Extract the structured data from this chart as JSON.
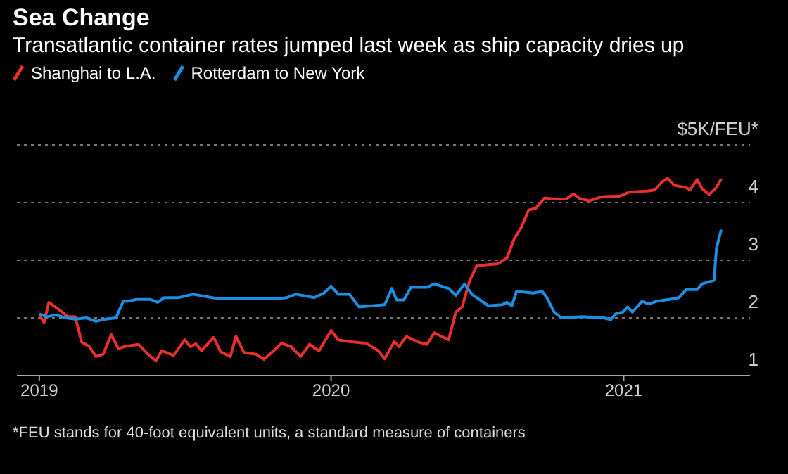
{
  "chart_data": {
    "type": "line",
    "title": "Sea Change",
    "subtitle": "Transatlantic container rates jumped last week as ship capacity dries up",
    "annotations": [
      "*FEU stands for 40-foot equivalent units, a standard measure of containers"
    ],
    "xlim": [
      "2018-12-04",
      "2021-06-08"
    ],
    "xticks": [
      "2019",
      "2020",
      "2021"
    ],
    "ylim": [
      1,
      5
    ],
    "yticks": [
      1,
      2,
      3,
      4,
      {
        "value": 5,
        "label": "$5K/FEU*"
      }
    ],
    "grid": "y",
    "legend": "top left",
    "series": [
      {
        "name": "Shanghai to L.A.",
        "color": "#e8302e",
        "x": [
          "2019-01-01",
          "2019-01-07",
          "2019-01-13",
          "2019-01-25",
          "2019-02-06",
          "2019-02-15",
          "2019-02-23",
          "2019-03-04",
          "2019-03-13",
          "2019-03-22",
          "2019-04-01",
          "2019-04-10",
          "2019-04-20",
          "2019-05-05",
          "2019-05-17",
          "2019-05-27",
          "2019-06-03",
          "2019-06-18",
          "2019-07-02",
          "2019-07-09",
          "2019-07-16",
          "2019-07-23",
          "2019-08-07",
          "2019-08-16",
          "2019-08-28",
          "2019-09-04",
          "2019-09-14",
          "2019-09-29",
          "2019-10-09",
          "2019-10-18",
          "2019-10-31",
          "2019-11-12",
          "2019-11-24",
          "2019-12-05",
          "2019-12-17",
          "2020-01-01",
          "2020-01-10",
          "2020-01-22",
          "2020-02-14",
          "2020-02-29",
          "2020-03-08",
          "2020-03-20",
          "2020-03-26",
          "2020-04-04",
          "2020-04-19",
          "2020-04-30",
          "2020-05-09",
          "2020-05-27",
          "2020-06-05",
          "2020-06-13",
          "2020-06-22",
          "2020-07-01",
          "2020-07-13",
          "2020-07-28",
          "2020-08-08",
          "2020-08-17",
          "2020-08-26",
          "2020-09-04",
          "2020-09-13",
          "2020-09-24",
          "2020-10-06",
          "2020-10-21",
          "2020-10-30",
          "2020-11-07",
          "2020-11-19",
          "2020-12-04",
          "2020-12-19",
          "2020-12-27",
          "2021-01-08",
          "2021-02-01",
          "2021-02-09",
          "2021-02-18",
          "2021-02-25",
          "2021-03-05",
          "2021-03-20",
          "2021-03-25",
          "2021-04-03",
          "2021-04-09",
          "2021-04-18",
          "2021-04-27",
          "2021-05-03"
        ],
        "values": [
          2.05,
          1.92,
          2.27,
          2.15,
          2.02,
          2.02,
          1.58,
          1.51,
          1.33,
          1.37,
          1.71,
          1.47,
          1.51,
          1.54,
          1.37,
          1.25,
          1.43,
          1.35,
          1.62,
          1.5,
          1.55,
          1.43,
          1.66,
          1.41,
          1.33,
          1.68,
          1.4,
          1.37,
          1.28,
          1.39,
          1.56,
          1.5,
          1.33,
          1.54,
          1.43,
          1.78,
          1.62,
          1.59,
          1.56,
          1.43,
          1.29,
          1.59,
          1.5,
          1.68,
          1.58,
          1.54,
          1.74,
          1.62,
          2.1,
          2.19,
          2.63,
          2.9,
          2.92,
          2.94,
          3.04,
          3.37,
          3.57,
          3.87,
          3.9,
          4.08,
          4.06,
          4.06,
          4.15,
          4.07,
          4.03,
          4.1,
          4.11,
          4.11,
          4.18,
          4.2,
          4.22,
          4.36,
          4.42,
          4.3,
          4.26,
          4.22,
          4.4,
          4.24,
          4.14,
          4.26,
          4.41
        ]
      },
      {
        "name": "Rotterdam to New York",
        "color": "#1b8fe2",
        "x": [
          "2019-01-01",
          "2019-01-10",
          "2019-01-22",
          "2019-02-03",
          "2019-02-15",
          "2019-03-01",
          "2019-03-13",
          "2019-03-25",
          "2019-04-07",
          "2019-04-16",
          "2019-04-23",
          "2019-05-02",
          "2019-05-20",
          "2019-05-29",
          "2019-06-06",
          "2019-06-24",
          "2019-07-12",
          "2019-07-29",
          "2019-08-10",
          "2019-10-31",
          "2019-11-06",
          "2019-11-18",
          "2019-12-11",
          "2019-12-23",
          "2020-01-01",
          "2020-01-10",
          "2020-01-24",
          "2020-02-05",
          "2020-03-08",
          "2020-03-17",
          "2020-03-23",
          "2020-04-01",
          "2020-04-10",
          "2020-04-30",
          "2020-05-09",
          "2020-05-27",
          "2020-06-05",
          "2020-06-16",
          "2020-06-25",
          "2020-07-16",
          "2020-08-02",
          "2020-08-08",
          "2020-08-14",
          "2020-08-20",
          "2020-09-10",
          "2020-09-21",
          "2020-09-27",
          "2020-10-06",
          "2020-10-15",
          "2020-11-10",
          "2020-12-07",
          "2020-12-16",
          "2020-12-22",
          "2020-12-31",
          "2021-01-06",
          "2021-01-12",
          "2021-01-24",
          "2021-02-01",
          "2021-02-12",
          "2021-02-27",
          "2021-03-11",
          "2021-03-20",
          "2021-04-03",
          "2021-04-09",
          "2021-04-24",
          "2021-04-27",
          "2021-05-03"
        ],
        "values": [
          2.07,
          2.02,
          2.05,
          2.0,
          1.98,
          2.0,
          1.94,
          1.98,
          2.0,
          2.29,
          2.29,
          2.32,
          2.32,
          2.27,
          2.35,
          2.35,
          2.41,
          2.37,
          2.34,
          2.34,
          2.35,
          2.41,
          2.35,
          2.43,
          2.55,
          2.41,
          2.41,
          2.19,
          2.23,
          2.51,
          2.31,
          2.31,
          2.53,
          2.53,
          2.59,
          2.51,
          2.39,
          2.59,
          2.41,
          2.21,
          2.23,
          2.27,
          2.21,
          2.46,
          2.43,
          2.46,
          2.35,
          2.1,
          2.0,
          2.02,
          2.0,
          1.97,
          2.07,
          2.1,
          2.19,
          2.1,
          2.29,
          2.24,
          2.29,
          2.32,
          2.35,
          2.49,
          2.49,
          2.59,
          2.65,
          3.2,
          3.53
        ]
      }
    ]
  }
}
